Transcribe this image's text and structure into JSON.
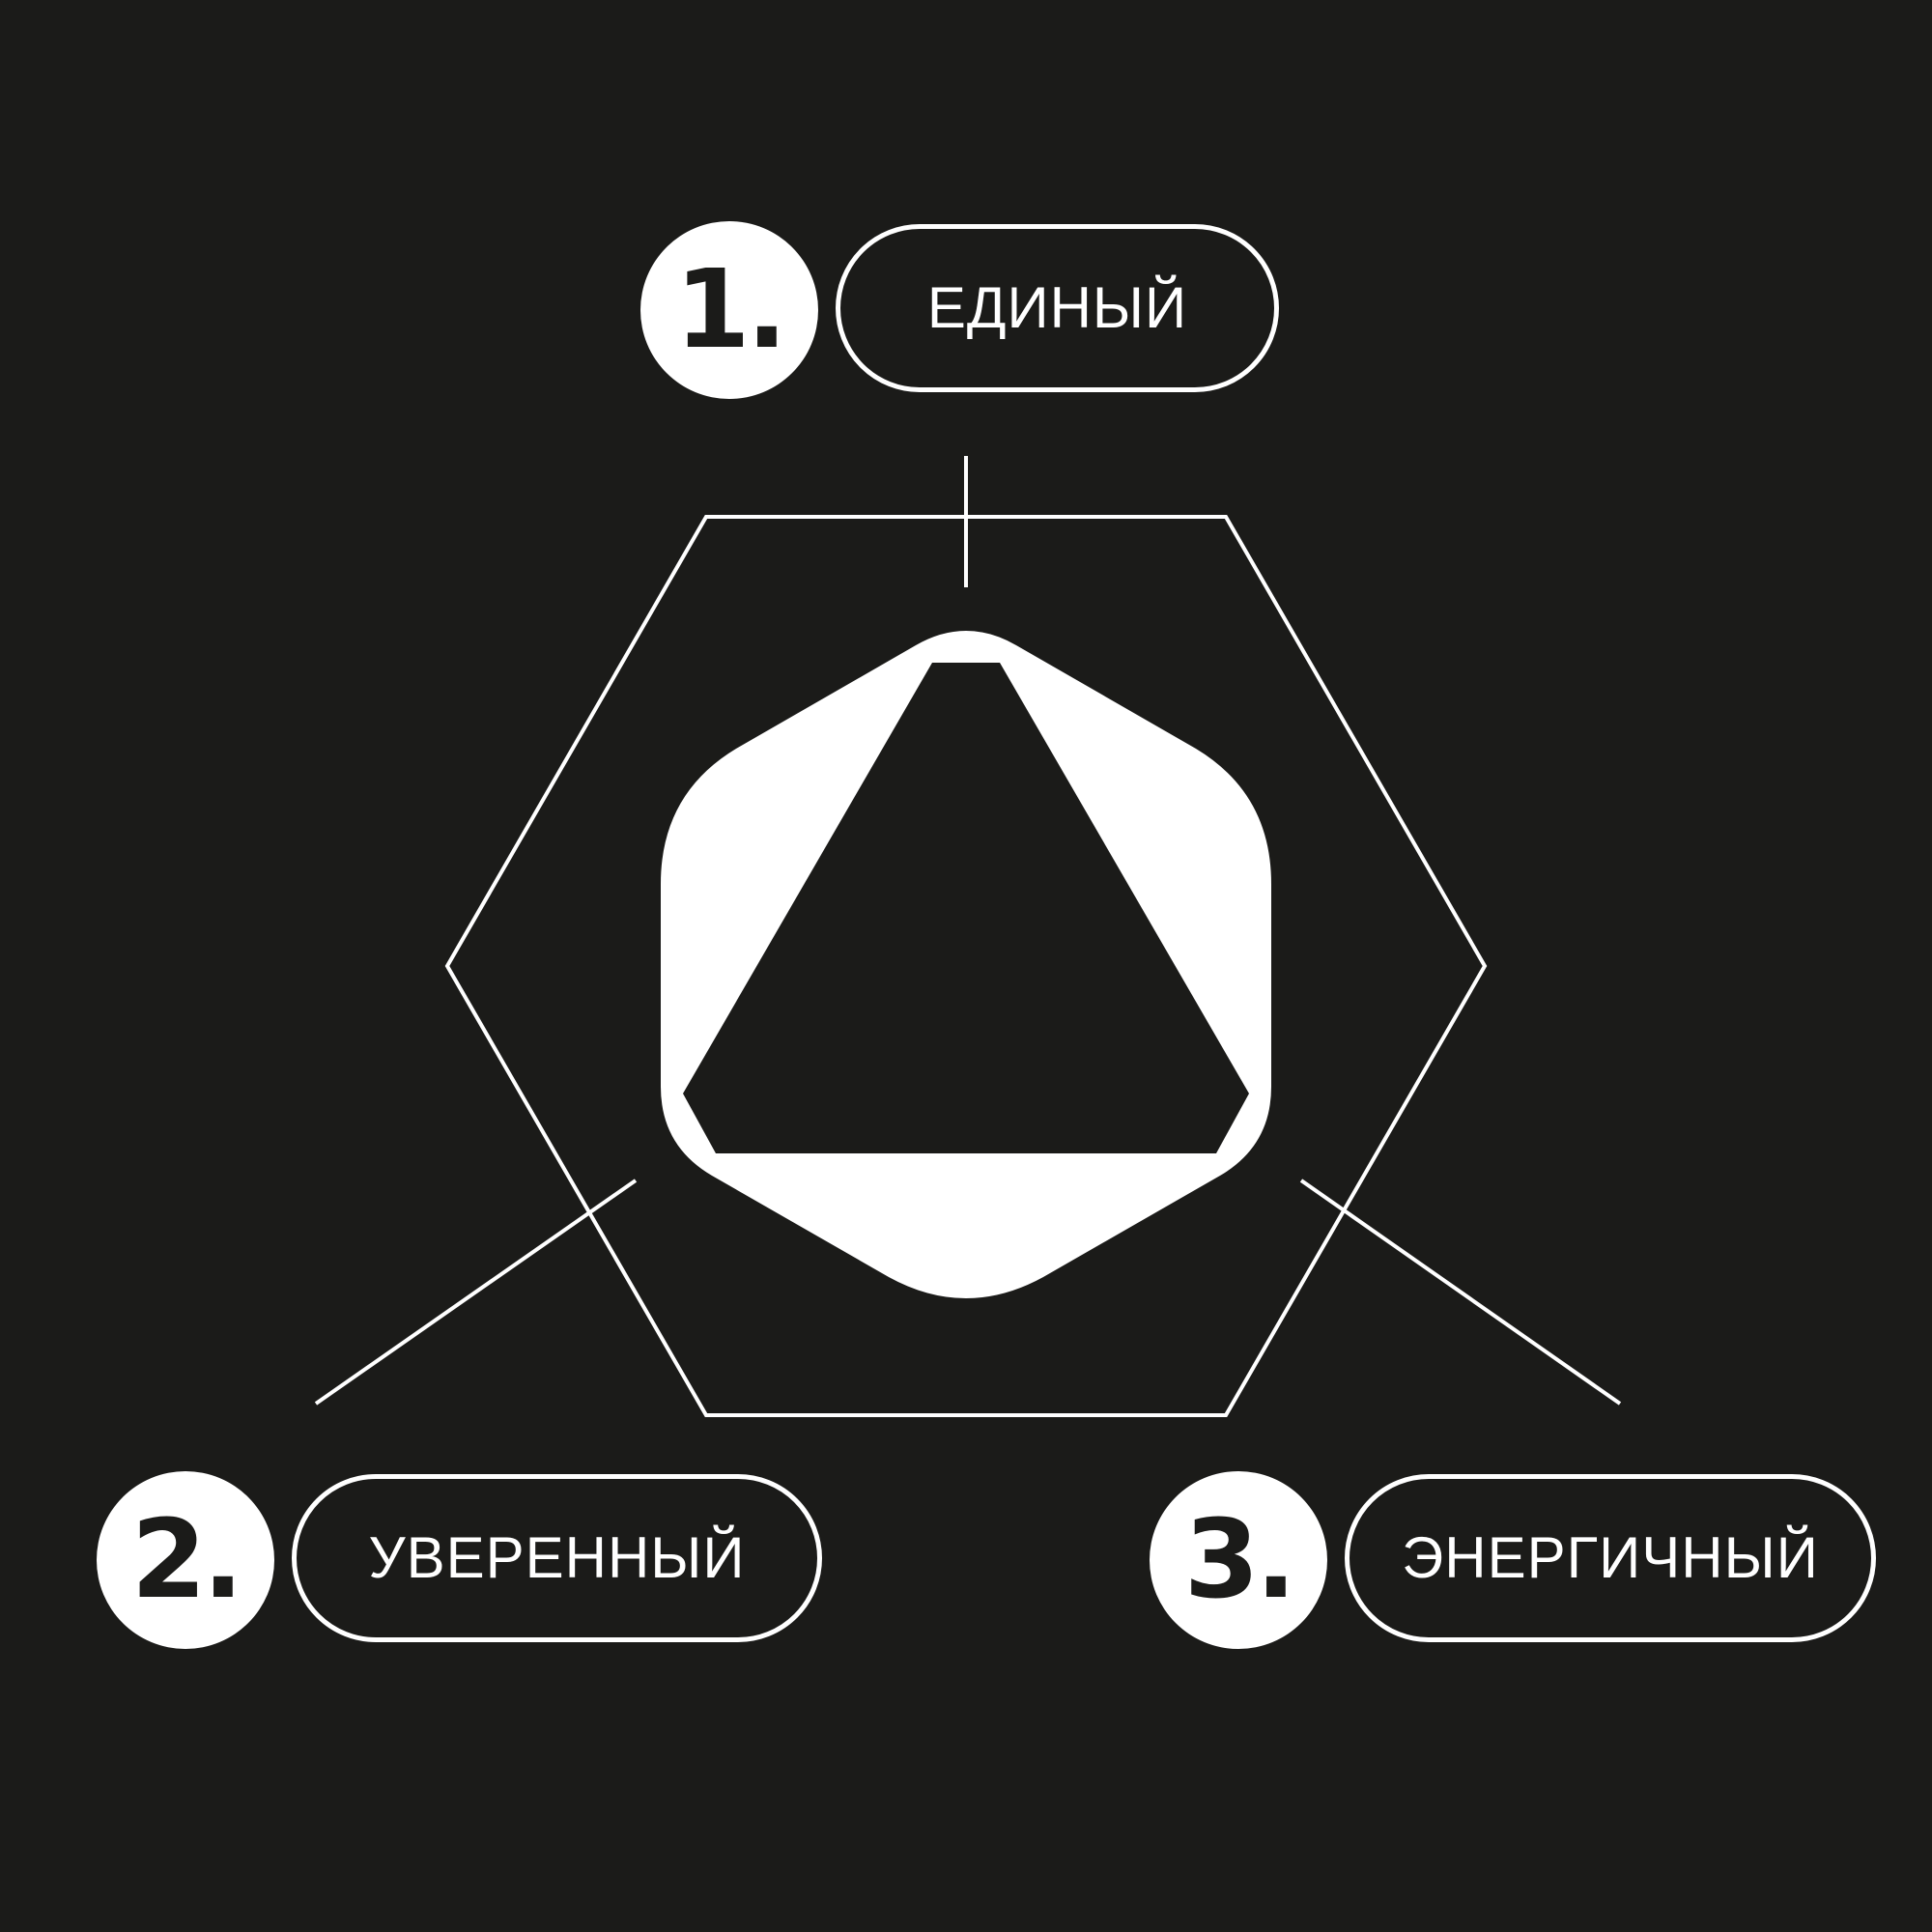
{
  "colors": {
    "background": "#1b1b19",
    "foreground": "#ffffff"
  },
  "items": [
    {
      "number": "1.",
      "label": "ЕДИНЫЙ"
    },
    {
      "number": "2.",
      "label": "УВЕРЕННЫЙ"
    },
    {
      "number": "3.",
      "label": "ЭНЕРГИЧНЫЙ"
    }
  ]
}
